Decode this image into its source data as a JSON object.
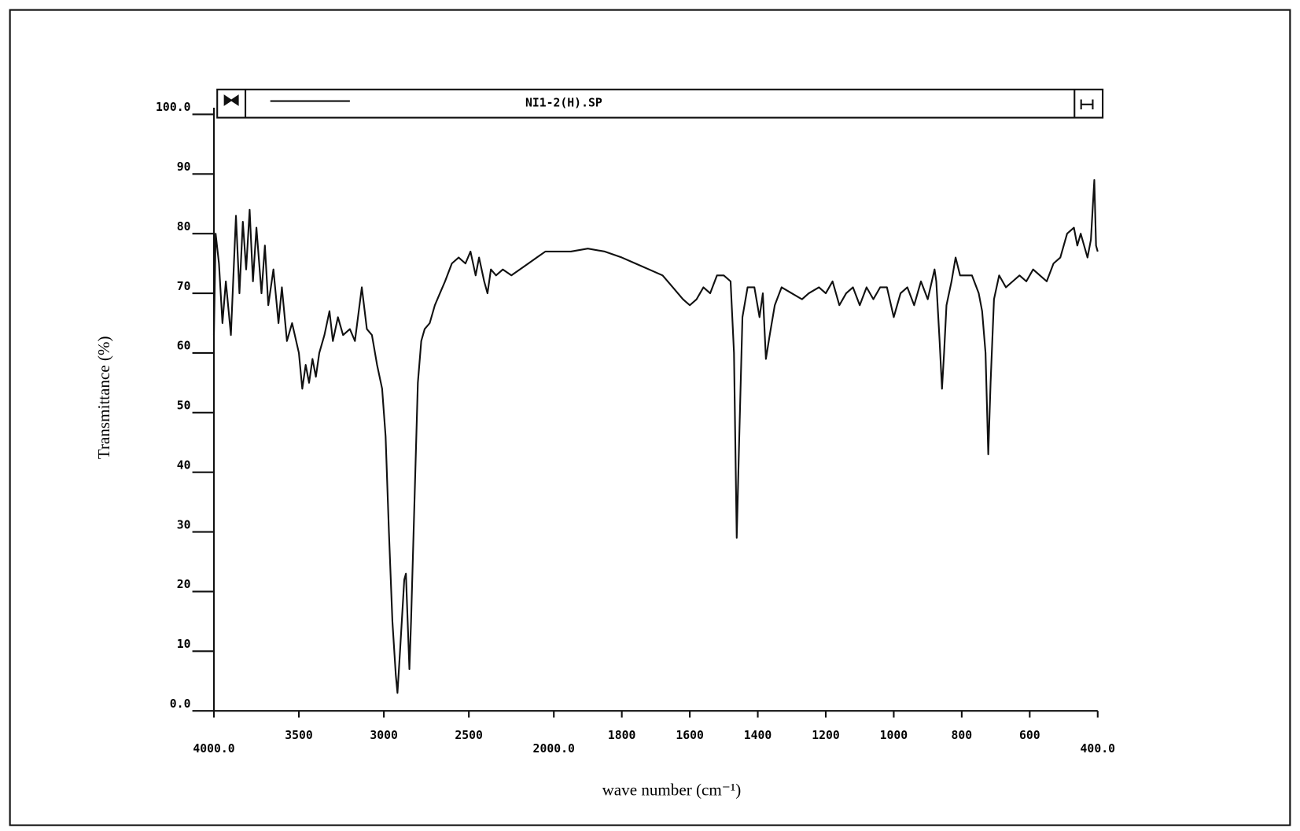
{
  "chart_data": {
    "type": "line",
    "title": "NI1-2(H).SP",
    "xlabel": "wave number (cm⁻¹)",
    "ylabel": "Transmittance (%)",
    "color": "#111111",
    "xlim": [
      4000,
      400
    ],
    "x_scale_break": {
      "at": 2000,
      "factor": 2
    },
    "ylim": [
      0,
      100
    ],
    "xticks": [
      {
        "value": 4000,
        "label": "4000.0"
      },
      3500,
      3000,
      2500,
      {
        "value": 2000,
        "label": "2000.0"
      },
      1800,
      1600,
      1400,
      1200,
      1000,
      800,
      600,
      {
        "value": 400,
        "label": "400.0"
      }
    ],
    "yticks": [
      {
        "value": 0,
        "label": "0.0"
      },
      10,
      20,
      30,
      40,
      50,
      60,
      70,
      80,
      90,
      {
        "value": 100,
        "label": "100.0"
      }
    ],
    "x": [
      4000,
      3990,
      3970,
      3950,
      3930,
      3900,
      3870,
      3850,
      3830,
      3810,
      3790,
      3770,
      3750,
      3720,
      3700,
      3680,
      3650,
      3620,
      3600,
      3570,
      3540,
      3500,
      3480,
      3460,
      3440,
      3420,
      3400,
      3380,
      3350,
      3320,
      3300,
      3270,
      3240,
      3200,
      3170,
      3130,
      3100,
      3070,
      3040,
      3010,
      2990,
      2970,
      2950,
      2930,
      2920,
      2905,
      2880,
      2870,
      2860,
      2850,
      2840,
      2820,
      2800,
      2780,
      2760,
      2730,
      2700,
      2670,
      2640,
      2600,
      2560,
      2520,
      2490,
      2460,
      2440,
      2410,
      2390,
      2370,
      2340,
      2300,
      2250,
      2200,
      2150,
      2100,
      2050,
      2000,
      1950,
      1900,
      1850,
      1800,
      1760,
      1720,
      1680,
      1650,
      1620,
      1600,
      1580,
      1560,
      1540,
      1520,
      1500,
      1480,
      1470,
      1462,
      1455,
      1445,
      1430,
      1410,
      1395,
      1385,
      1376,
      1365,
      1350,
      1330,
      1300,
      1270,
      1250,
      1220,
      1200,
      1180,
      1160,
      1140,
      1120,
      1100,
      1080,
      1060,
      1040,
      1020,
      1000,
      980,
      960,
      940,
      920,
      900,
      880,
      875,
      865,
      858,
      852,
      845,
      830,
      818,
      805,
      790,
      770,
      750,
      740,
      730,
      722,
      715,
      705,
      690,
      670,
      650,
      630,
      610,
      590,
      570,
      550,
      530,
      510,
      490,
      470,
      460,
      450,
      440,
      430,
      420,
      410,
      405,
      400
    ],
    "values": [
      63,
      80,
      75,
      65,
      72,
      63,
      83,
      70,
      82,
      74,
      84,
      72,
      81,
      70,
      78,
      68,
      74,
      65,
      71,
      62,
      65,
      60,
      54,
      58,
      55,
      59,
      56,
      60,
      63,
      67,
      62,
      66,
      63,
      64,
      62,
      71,
      64,
      63,
      58,
      54,
      46,
      30,
      15,
      6,
      3,
      10,
      22,
      23,
      15,
      7,
      15,
      35,
      55,
      62,
      64,
      65,
      68,
      70,
      72,
      75,
      76,
      75,
      77,
      73,
      76,
      72,
      70,
      74,
      73,
      74,
      73,
      74,
      75,
      76,
      77,
      77,
      77,
      77.5,
      77,
      76,
      75,
      74,
      73,
      71,
      69,
      68,
      69,
      71,
      70,
      73,
      73,
      72,
      60,
      29,
      45,
      66,
      71,
      71,
      66,
      70,
      59,
      63,
      68,
      71,
      70,
      69,
      70,
      71,
      70,
      72,
      68,
      70,
      71,
      68,
      71,
      69,
      71,
      71,
      66,
      70,
      71,
      68,
      72,
      69,
      74,
      72,
      62,
      54,
      60,
      68,
      72,
      76,
      73,
      73,
      73,
      70,
      67,
      60,
      43,
      55,
      69,
      73,
      71,
      72,
      73,
      72,
      74,
      73,
      72,
      75,
      76,
      80,
      81,
      78,
      80,
      78,
      76,
      79,
      89,
      78,
      77
    ]
  }
}
